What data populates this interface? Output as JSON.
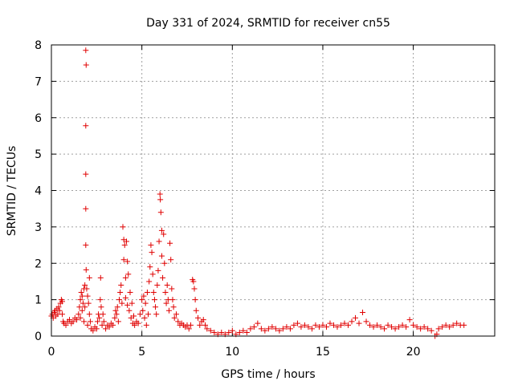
{
  "chart_data": {
    "type": "scatter",
    "title": "Day 331 of 2024, SRMTID for receiver cn55",
    "xlabel": "GPS time / hours",
    "ylabel": "SRMTID / TECUs",
    "xlim": [
      0,
      24.5
    ],
    "ylim": [
      0,
      8
    ],
    "xticks": [
      0,
      5,
      10,
      15,
      20
    ],
    "yticks": [
      0,
      1,
      2,
      3,
      4,
      5,
      6,
      7,
      8
    ],
    "xtick_labels": [
      "0",
      "5",
      "10",
      "15",
      "20"
    ],
    "ytick_labels": [
      "0",
      "1",
      "2",
      "3",
      "4",
      "5",
      "6",
      "7",
      "8"
    ],
    "grid": true,
    "marker": "+",
    "color": "#e00000",
    "series": [
      {
        "name": "cn55",
        "points": [
          [
            0.0,
            0.55
          ],
          [
            0.05,
            0.6
          ],
          [
            0.1,
            0.5
          ],
          [
            0.15,
            0.65
          ],
          [
            0.2,
            0.7
          ],
          [
            0.25,
            0.55
          ],
          [
            0.3,
            0.75
          ],
          [
            0.35,
            0.6
          ],
          [
            0.4,
            0.8
          ],
          [
            0.45,
            0.7
          ],
          [
            0.5,
            0.9
          ],
          [
            0.55,
            1.0
          ],
          [
            0.6,
            0.95
          ],
          [
            0.6,
            0.6
          ],
          [
            0.65,
            0.4
          ],
          [
            0.7,
            0.35
          ],
          [
            0.8,
            0.3
          ],
          [
            0.9,
            0.4
          ],
          [
            1.0,
            0.45
          ],
          [
            1.1,
            0.35
          ],
          [
            1.2,
            0.4
          ],
          [
            1.3,
            0.5
          ],
          [
            1.4,
            0.45
          ],
          [
            1.5,
            0.6
          ],
          [
            1.55,
            0.8
          ],
          [
            1.6,
            1.0
          ],
          [
            1.6,
            0.5
          ],
          [
            1.65,
            1.2
          ],
          [
            1.7,
            0.7
          ],
          [
            1.7,
            1.1
          ],
          [
            1.75,
            0.9
          ],
          [
            1.8,
            1.3
          ],
          [
            1.8,
            0.4
          ],
          [
            1.85,
            1.4
          ],
          [
            1.85,
            0.8
          ],
          [
            1.9,
            7.85
          ],
          [
            1.92,
            7.45
          ],
          [
            1.9,
            5.78
          ],
          [
            1.9,
            4.45
          ],
          [
            1.9,
            3.5
          ],
          [
            1.9,
            2.5
          ],
          [
            1.92,
            1.82
          ],
          [
            1.95,
            1.3
          ],
          [
            2.0,
            1.1
          ],
          [
            2.0,
            0.3
          ],
          [
            2.05,
            0.9
          ],
          [
            2.1,
            0.6
          ],
          [
            2.1,
            1.6
          ],
          [
            2.15,
            0.4
          ],
          [
            2.2,
            0.2
          ],
          [
            2.3,
            0.15
          ],
          [
            2.4,
            0.25
          ],
          [
            2.5,
            0.2
          ],
          [
            2.55,
            0.4
          ],
          [
            2.6,
            0.6
          ],
          [
            2.65,
            0.5
          ],
          [
            2.7,
            1.0
          ],
          [
            2.72,
            1.6
          ],
          [
            2.75,
            0.8
          ],
          [
            2.8,
            0.3
          ],
          [
            2.85,
            0.6
          ],
          [
            2.9,
            0.4
          ],
          [
            3.0,
            0.2
          ],
          [
            3.1,
            0.3
          ],
          [
            3.2,
            0.25
          ],
          [
            3.3,
            0.35
          ],
          [
            3.4,
            0.3
          ],
          [
            3.5,
            0.5
          ],
          [
            3.55,
            0.7
          ],
          [
            3.6,
            0.6
          ],
          [
            3.65,
            0.8
          ],
          [
            3.7,
            0.4
          ],
          [
            3.75,
            1.0
          ],
          [
            3.8,
            1.2
          ],
          [
            3.85,
            1.4
          ],
          [
            3.9,
            0.9
          ],
          [
            3.95,
            3.0
          ],
          [
            4.0,
            2.65
          ],
          [
            4.0,
            2.1
          ],
          [
            4.05,
            2.5
          ],
          [
            4.1,
            1.6
          ],
          [
            4.1,
            1.05
          ],
          [
            4.15,
            2.6
          ],
          [
            4.2,
            2.05
          ],
          [
            4.2,
            0.85
          ],
          [
            4.25,
            1.7
          ],
          [
            4.3,
            0.7
          ],
          [
            4.35,
            1.2
          ],
          [
            4.4,
            0.5
          ],
          [
            4.45,
            0.9
          ],
          [
            4.5,
            0.35
          ],
          [
            4.55,
            0.55
          ],
          [
            4.6,
            0.3
          ],
          [
            4.7,
            0.4
          ],
          [
            4.8,
            0.35
          ],
          [
            4.9,
            0.6
          ],
          [
            5.0,
            1.0
          ],
          [
            5.05,
            0.7
          ],
          [
            5.1,
            1.1
          ],
          [
            5.15,
            0.5
          ],
          [
            5.2,
            0.9
          ],
          [
            5.25,
            0.3
          ],
          [
            5.3,
            1.2
          ],
          [
            5.35,
            0.6
          ],
          [
            5.4,
            1.5
          ],
          [
            5.45,
            1.9
          ],
          [
            5.5,
            2.5
          ],
          [
            5.55,
            2.3
          ],
          [
            5.6,
            1.7
          ],
          [
            5.65,
            1.2
          ],
          [
            5.7,
            1.0
          ],
          [
            5.75,
            0.8
          ],
          [
            5.8,
            0.6
          ],
          [
            5.85,
            1.4
          ],
          [
            5.9,
            1.8
          ],
          [
            5.95,
            2.6
          ],
          [
            6.0,
            3.9
          ],
          [
            6.02,
            3.75
          ],
          [
            6.05,
            3.4
          ],
          [
            6.1,
            2.9
          ],
          [
            6.1,
            2.2
          ],
          [
            6.15,
            1.6
          ],
          [
            6.2,
            2.8
          ],
          [
            6.25,
            2.0
          ],
          [
            6.3,
            1.2
          ],
          [
            6.35,
            0.9
          ],
          [
            6.4,
            1.4
          ],
          [
            6.45,
            1.0
          ],
          [
            6.5,
            0.7
          ],
          [
            6.55,
            2.55
          ],
          [
            6.6,
            2.1
          ],
          [
            6.65,
            1.3
          ],
          [
            6.7,
            1.0
          ],
          [
            6.75,
            0.8
          ],
          [
            6.8,
            0.5
          ],
          [
            6.9,
            0.6
          ],
          [
            7.0,
            0.4
          ],
          [
            7.1,
            0.3
          ],
          [
            7.2,
            0.35
          ],
          [
            7.3,
            0.3
          ],
          [
            7.4,
            0.25
          ],
          [
            7.5,
            0.3
          ],
          [
            7.6,
            0.2
          ],
          [
            7.7,
            0.3
          ],
          [
            7.8,
            1.55
          ],
          [
            7.85,
            1.5
          ],
          [
            7.9,
            1.3
          ],
          [
            7.95,
            1.0
          ],
          [
            8.0,
            0.7
          ],
          [
            8.1,
            0.5
          ],
          [
            8.2,
            0.3
          ],
          [
            8.3,
            0.4
          ],
          [
            8.4,
            0.45
          ],
          [
            8.5,
            0.3
          ],
          [
            8.6,
            0.2
          ],
          [
            8.8,
            0.15
          ],
          [
            9.0,
            0.1
          ],
          [
            9.2,
            0.05
          ],
          [
            9.4,
            0.1
          ],
          [
            9.6,
            0.05
          ],
          [
            9.8,
            0.1
          ],
          [
            10.0,
            0.15
          ],
          [
            10.2,
            0.05
          ],
          [
            10.4,
            0.1
          ],
          [
            10.6,
            0.15
          ],
          [
            10.8,
            0.1
          ],
          [
            11.0,
            0.2
          ],
          [
            11.2,
            0.25
          ],
          [
            11.4,
            0.35
          ],
          [
            11.6,
            0.2
          ],
          [
            11.8,
            0.15
          ],
          [
            12.0,
            0.2
          ],
          [
            12.2,
            0.25
          ],
          [
            12.4,
            0.2
          ],
          [
            12.6,
            0.15
          ],
          [
            12.8,
            0.2
          ],
          [
            13.0,
            0.25
          ],
          [
            13.2,
            0.2
          ],
          [
            13.4,
            0.3
          ],
          [
            13.6,
            0.35
          ],
          [
            13.8,
            0.25
          ],
          [
            14.0,
            0.3
          ],
          [
            14.2,
            0.25
          ],
          [
            14.4,
            0.2
          ],
          [
            14.6,
            0.3
          ],
          [
            14.8,
            0.25
          ],
          [
            15.0,
            0.3
          ],
          [
            15.2,
            0.25
          ],
          [
            15.4,
            0.35
          ],
          [
            15.6,
            0.3
          ],
          [
            15.8,
            0.25
          ],
          [
            16.0,
            0.3
          ],
          [
            16.2,
            0.35
          ],
          [
            16.4,
            0.3
          ],
          [
            16.6,
            0.4
          ],
          [
            16.8,
            0.5
          ],
          [
            17.0,
            0.35
          ],
          [
            17.2,
            0.65
          ],
          [
            17.4,
            0.4
          ],
          [
            17.6,
            0.3
          ],
          [
            17.8,
            0.25
          ],
          [
            18.0,
            0.3
          ],
          [
            18.2,
            0.25
          ],
          [
            18.4,
            0.2
          ],
          [
            18.6,
            0.3
          ],
          [
            18.8,
            0.25
          ],
          [
            19.0,
            0.2
          ],
          [
            19.2,
            0.25
          ],
          [
            19.4,
            0.3
          ],
          [
            19.6,
            0.25
          ],
          [
            19.8,
            0.45
          ],
          [
            20.0,
            0.3
          ],
          [
            20.2,
            0.25
          ],
          [
            20.4,
            0.2
          ],
          [
            20.6,
            0.25
          ],
          [
            20.8,
            0.2
          ],
          [
            21.0,
            0.15
          ],
          [
            21.2,
            0.0
          ],
          [
            21.3,
            0.05
          ],
          [
            21.4,
            0.2
          ],
          [
            21.6,
            0.25
          ],
          [
            21.8,
            0.3
          ],
          [
            22.0,
            0.25
          ],
          [
            22.2,
            0.3
          ],
          [
            22.4,
            0.35
          ],
          [
            22.6,
            0.3
          ],
          [
            22.8,
            0.3
          ]
        ]
      }
    ]
  }
}
